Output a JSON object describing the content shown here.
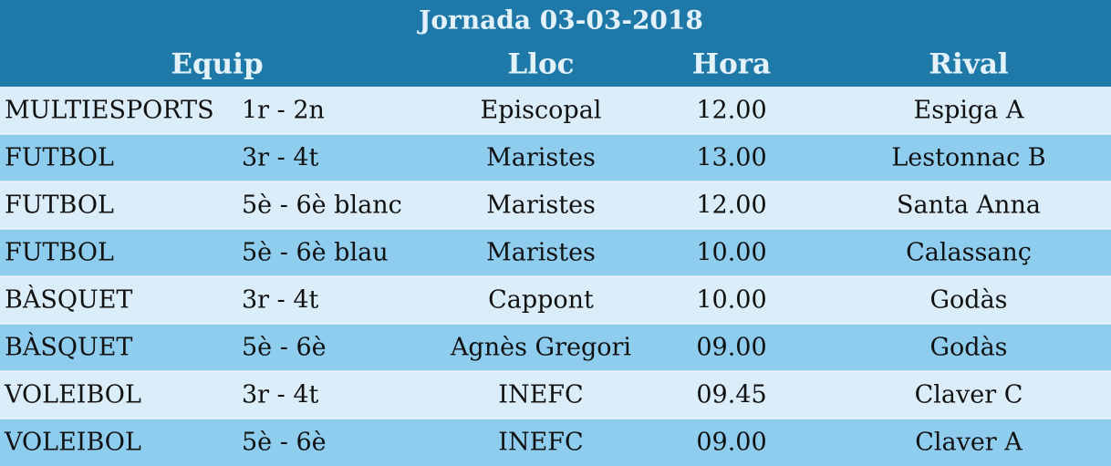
{
  "header": {
    "title": "Jornada 03-03-2018",
    "columns": [
      "Equip",
      "Lloc",
      "Hora",
      "Rival"
    ]
  },
  "table": {
    "rows": [
      [
        "MULTIESPORTS",
        "1r - 2n",
        "Episcopal",
        "12.00",
        "Espiga A"
      ],
      [
        "FUTBOL",
        "3r - 4t",
        "Maristes",
        "13.00",
        "Lestonnac B"
      ],
      [
        "FUTBOL",
        "5è - 6è blanc",
        "Maristes",
        "12.00",
        "Santa Anna"
      ],
      [
        "FUTBOL",
        "5è - 6è blau",
        "Maristes",
        "10.00",
        "Calassanç"
      ],
      [
        "BÀSQUET",
        "3r - 4t",
        "Cappont",
        "10.00",
        "Godàs"
      ],
      [
        "BÀSQUET",
        "5è - 6è",
        "Agnès Gregori",
        "09.00",
        "Godàs"
      ],
      [
        "VOLEIBOL",
        "3r - 4t",
        "INEFC",
        "09.45",
        "Claver C"
      ],
      [
        "VOLEIBOL",
        "5è - 6è",
        "INEFC",
        "09.00",
        "Claver A"
      ]
    ]
  }
}
